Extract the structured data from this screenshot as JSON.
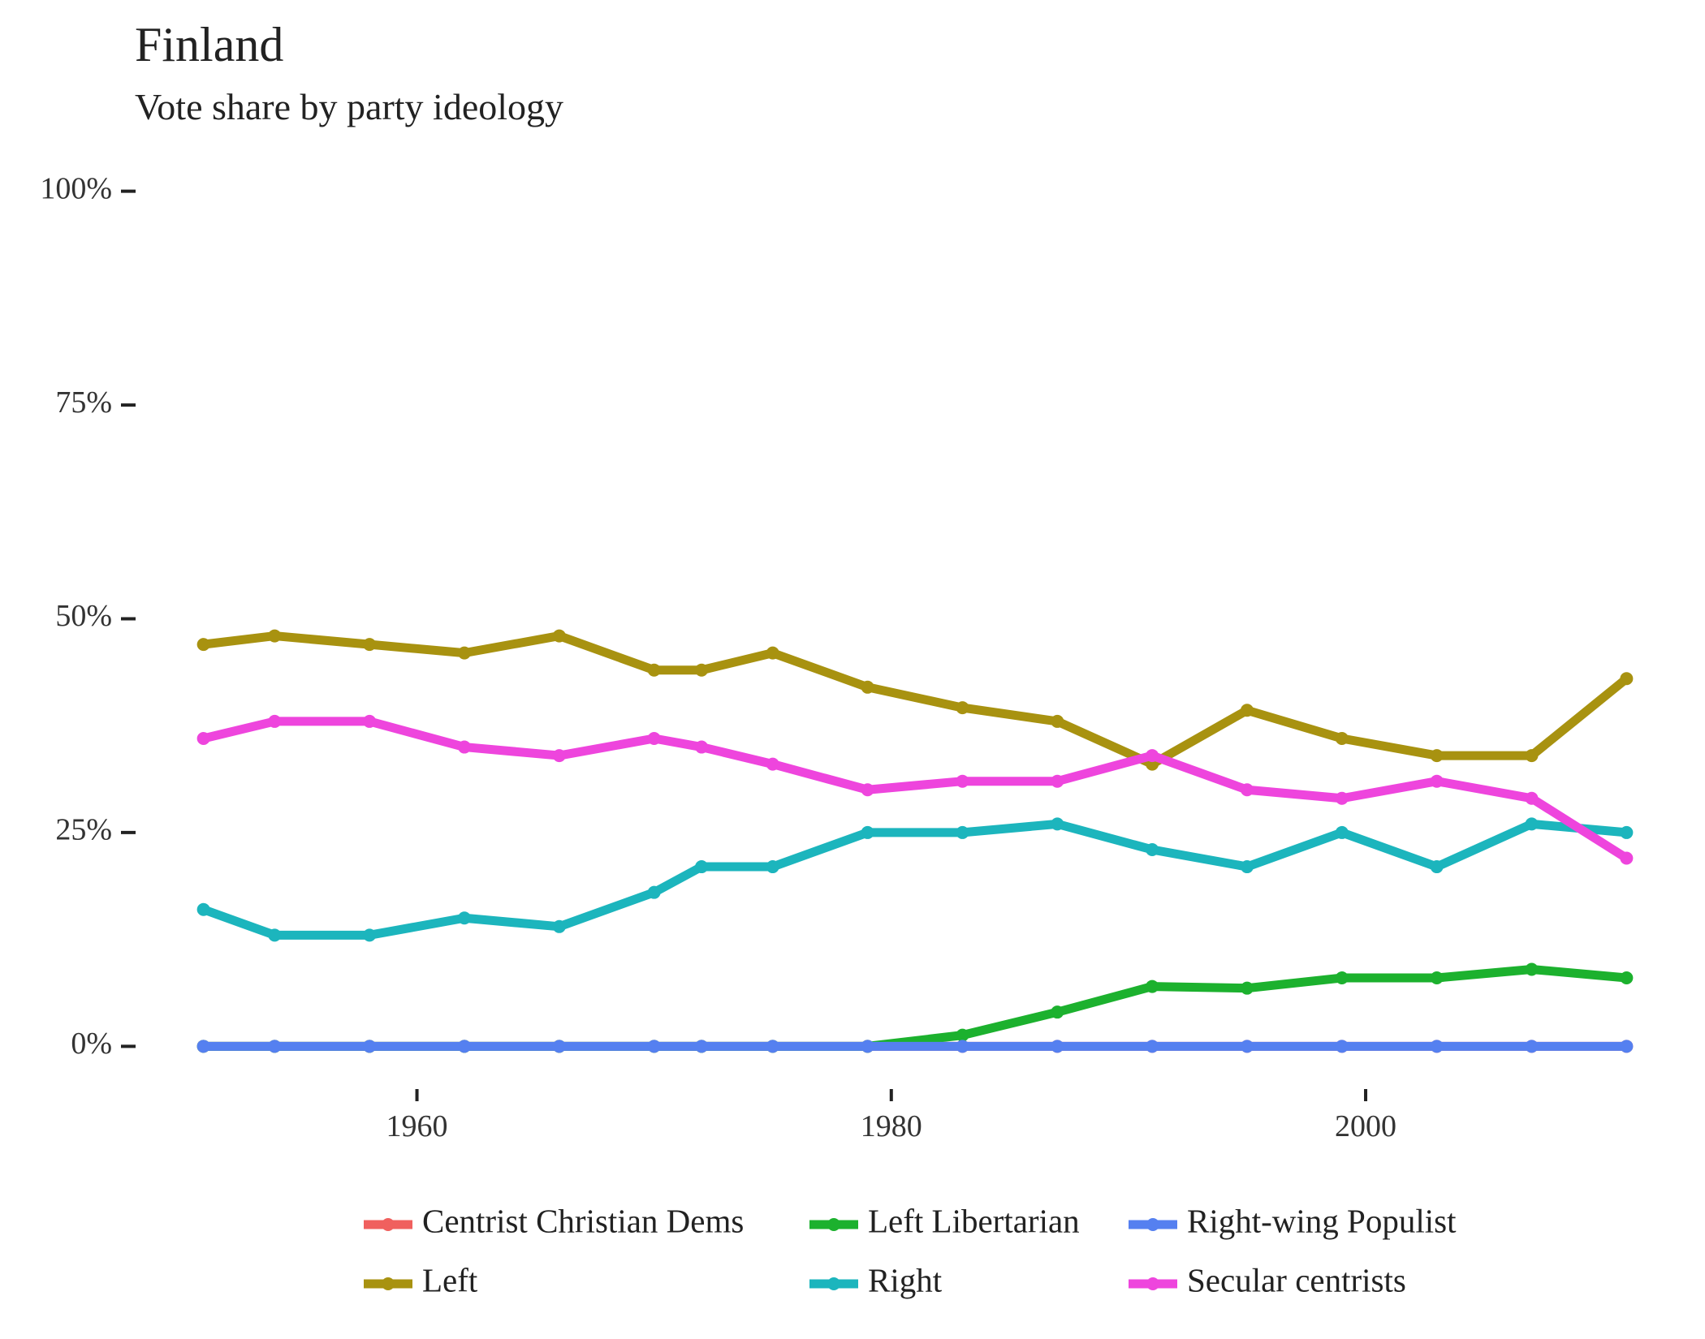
{
  "chart_data": {
    "type": "line",
    "title": "Finland",
    "subtitle": "Vote share by party ideology",
    "x": [
      1951,
      1954,
      1958,
      1962,
      1966,
      1970,
      1972,
      1975,
      1979,
      1983,
      1987,
      1991,
      1995,
      1999,
      2003,
      2007,
      2011
    ],
    "series": [
      {
        "name": "Centrist Christian Dems",
        "color": "#f0605e",
        "values": [
          0,
          0,
          0,
          0,
          0,
          0,
          0,
          0,
          0,
          0,
          0,
          0,
          0,
          0,
          0,
          0,
          0
        ]
      },
      {
        "name": "Left",
        "color": "#a89210",
        "values": [
          47,
          48,
          47,
          46,
          48,
          44,
          44,
          46,
          42,
          39.6,
          38,
          33,
          39.3,
          36,
          34,
          34,
          43
        ]
      },
      {
        "name": "Left Libertarian",
        "color": "#1cb12e",
        "values": [
          0,
          0,
          0,
          0,
          0,
          0,
          0,
          0,
          0,
          1.3,
          4,
          7,
          6.8,
          8,
          8,
          9,
          8
        ]
      },
      {
        "name": "Right",
        "color": "#1cb5bd",
        "values": [
          16,
          13,
          13,
          15,
          14,
          18,
          21,
          21,
          25,
          25,
          26,
          23,
          21,
          25,
          21,
          26,
          25
        ]
      },
      {
        "name": "Right-wing Populist",
        "color": "#5580f0",
        "values": [
          0,
          0,
          0,
          0,
          0,
          0,
          0,
          0,
          0,
          0,
          0,
          0,
          0,
          0,
          0,
          0,
          0
        ]
      },
      {
        "name": "Secular centrists",
        "color": "#ee45dd",
        "values": [
          36,
          38,
          38,
          35,
          34,
          36,
          35,
          33,
          30,
          31,
          31,
          34,
          30,
          29,
          31,
          29,
          22
        ]
      }
    ],
    "xlim": [
      1948,
      2014
    ],
    "xticks": [
      1960,
      1980,
      2000
    ],
    "ylim": [
      -5,
      105
    ],
    "yticks": [
      {
        "value": 0,
        "label": "0%"
      },
      {
        "value": 25,
        "label": "25%"
      },
      {
        "value": 50,
        "label": "50%"
      },
      {
        "value": 75,
        "label": "75%"
      },
      {
        "value": 100,
        "label": "100%"
      }
    ]
  }
}
